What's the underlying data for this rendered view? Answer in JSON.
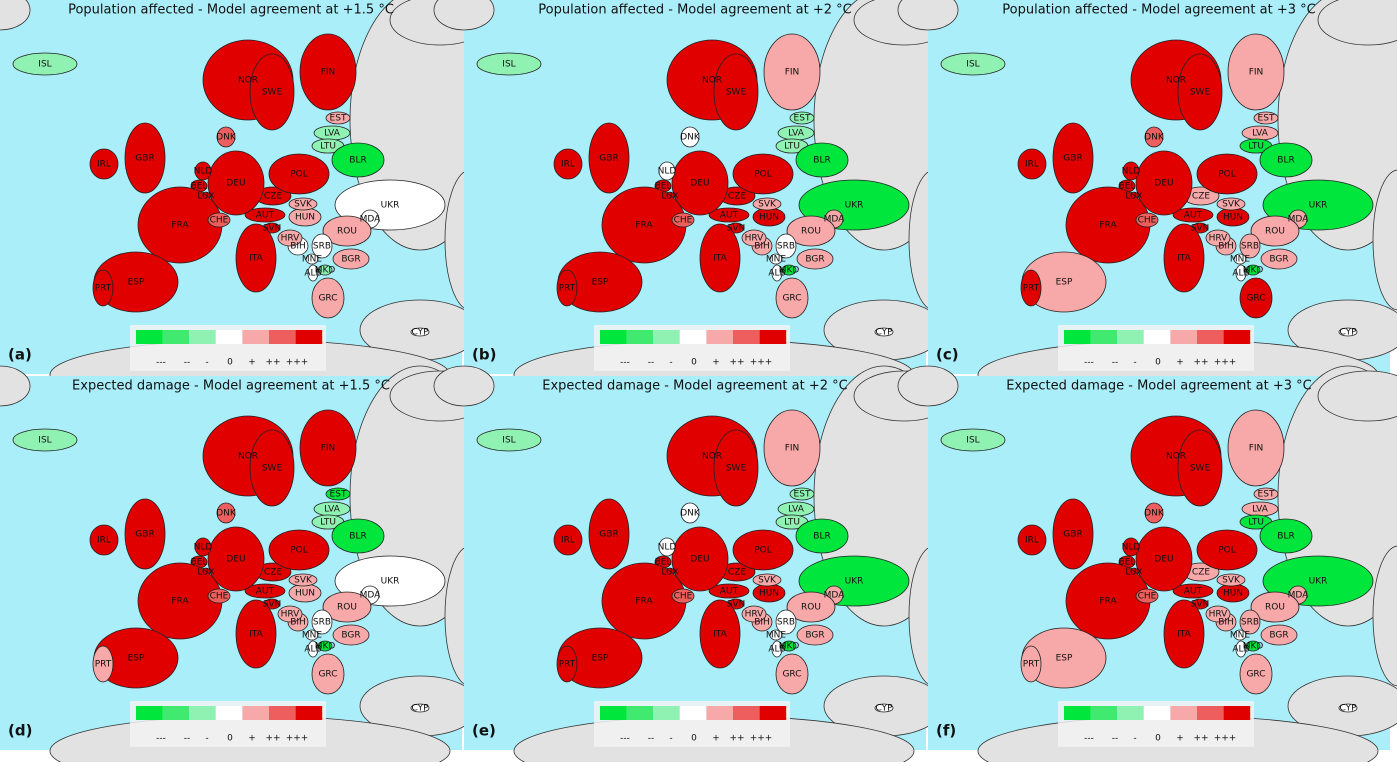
{
  "legend": [
    {
      "label": "---",
      "color": "#00e63c"
    },
    {
      "label": "--",
      "color": "#3fea6e"
    },
    {
      "label": "-",
      "color": "#8ff2b2"
    },
    {
      "label": "0",
      "color": "#ffffff"
    },
    {
      "label": "+",
      "color": "#f7a8a8"
    },
    {
      "label": "++",
      "color": "#ef5e5e"
    },
    {
      "label": "+++",
      "color": "#e00000"
    }
  ],
  "countries": [
    "ISL",
    "NOR",
    "SWE",
    "FIN",
    "EST",
    "LVA",
    "LTU",
    "BLR",
    "UKR",
    "MDA",
    "ROU",
    "BGR",
    "SRB",
    "BIH",
    "MNE",
    "ALB",
    "MKD",
    "GRC",
    "HRV",
    "SVN",
    "HUN",
    "SVK",
    "AUT",
    "CZE",
    "POL",
    "DEU",
    "NLD",
    "BEL",
    "LUX",
    "FRA",
    "CHE",
    "ITA",
    "ESP",
    "PRT",
    "GBR",
    "IRL",
    "DNK",
    "CYP"
  ],
  "panels": [
    {
      "title": "Population affected - Model agreement at +1.5 °C",
      "letter": "(a)",
      "classes": [
        "-",
        "+++",
        "+++",
        "+++",
        "+",
        "-",
        "-",
        "---",
        "0",
        "0",
        "+",
        "+",
        "0",
        "0",
        "0",
        "0",
        "-",
        "+",
        "+",
        "+++",
        "+",
        "+",
        "+++",
        "+++",
        "+++",
        "+++",
        "+++",
        "+++",
        "+++",
        "+++",
        "++",
        "+++",
        "+++",
        "+++",
        "+++",
        "+++",
        "++",
        "0"
      ]
    },
    {
      "title": "Population affected - Model agreement at +2 °C",
      "letter": "(b)",
      "classes": [
        "-",
        "+++",
        "+++",
        "+",
        "-",
        "-",
        "-",
        "---",
        "---",
        "+",
        "+",
        "+",
        "0",
        "+",
        "0",
        "0",
        "---",
        "+",
        "+",
        "+++",
        "+++",
        "+",
        "+++",
        "+++",
        "+++",
        "+++",
        "0",
        "+++",
        "+++",
        "+++",
        "++",
        "+++",
        "+++",
        "+++",
        "+++",
        "+++",
        "0",
        "0"
      ]
    },
    {
      "title": "Population affected - Model agreement at +3 °C",
      "letter": "(c)",
      "classes": [
        "-",
        "+++",
        "+++",
        "+",
        "+",
        "+",
        "---",
        "---",
        "---",
        "+",
        "+",
        "+",
        "+",
        "+",
        "0",
        "0",
        "---",
        "+++",
        "+",
        "+++",
        "+++",
        "+",
        "+++",
        "+",
        "+++",
        "+++",
        "+++",
        "+++",
        "+++",
        "+++",
        "++",
        "+++",
        "+",
        "+++",
        "+++",
        "+++",
        "++",
        "0"
      ]
    },
    {
      "title": "Expected damage - Model agreement at +1.5 °C",
      "letter": "(d)",
      "classes": [
        "-",
        "+++",
        "+++",
        "+++",
        "---",
        "-",
        "-",
        "---",
        "0",
        "0",
        "+",
        "+",
        "0",
        "+",
        "0",
        "0",
        "---",
        "+",
        "+",
        "+++",
        "+",
        "+",
        "+++",
        "+++",
        "+++",
        "+++",
        "+++",
        "+++",
        "+++",
        "+++",
        "++",
        "+++",
        "+++",
        "+",
        "+++",
        "+++",
        "++",
        "0"
      ]
    },
    {
      "title": "Expected damage - Model agreement at +2 °C",
      "letter": "(e)",
      "classes": [
        "-",
        "+++",
        "+++",
        "+",
        "-",
        "-",
        "-",
        "---",
        "---",
        "+",
        "+",
        "+",
        "0",
        "+",
        "0",
        "0",
        "---",
        "+",
        "+",
        "+++",
        "+++",
        "+",
        "+++",
        "+++",
        "+++",
        "+++",
        "0",
        "+++",
        "+++",
        "+++",
        "++",
        "+++",
        "+++",
        "+++",
        "+++",
        "+++",
        "0",
        "0"
      ]
    },
    {
      "title": "Expected damage - Model agreement at +3 °C",
      "letter": "(f)",
      "classes": [
        "-",
        "+++",
        "+++",
        "+",
        "+",
        "+",
        "---",
        "---",
        "---",
        "+",
        "+",
        "+",
        "+",
        "+",
        "0",
        "0",
        "---",
        "+",
        "+",
        "+++",
        "+++",
        "+",
        "+++",
        "+",
        "+++",
        "+++",
        "+++",
        "+++",
        "+++",
        "+++",
        "++",
        "+++",
        "+",
        "+",
        "+++",
        "+++",
        "++",
        "0"
      ]
    }
  ]
}
